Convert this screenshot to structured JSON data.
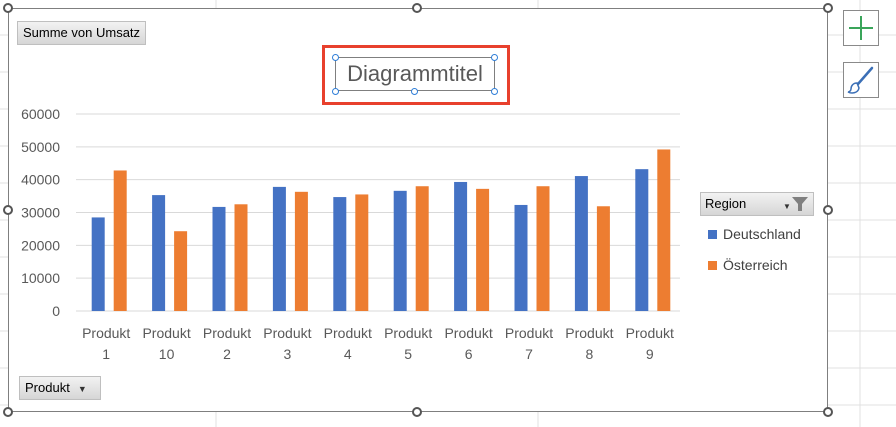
{
  "pivot": {
    "value_field_label": "Summe von Umsatz",
    "row_field_label": "Produkt",
    "legend_field_label": "Region"
  },
  "chart_title": "Diagrammtitel",
  "colors": {
    "Deutschland": "#4472c4",
    "Österreich": "#ed7d31",
    "selection": "#e8402d"
  },
  "icons": {
    "add": "plus-icon",
    "style": "brush-icon",
    "filter": "filter-icon"
  },
  "chart_data": {
    "type": "bar",
    "title": "Diagrammtitel",
    "categories": [
      [
        "Produkt",
        "1"
      ],
      [
        "Produkt",
        "10"
      ],
      [
        "Produkt",
        "2"
      ],
      [
        "Produkt",
        "3"
      ],
      [
        "Produkt",
        "4"
      ],
      [
        "Produkt",
        "5"
      ],
      [
        "Produkt",
        "6"
      ],
      [
        "Produkt",
        "7"
      ],
      [
        "Produkt",
        "8"
      ],
      [
        "Produkt",
        "9"
      ]
    ],
    "series": [
      {
        "name": "Deutschland",
        "values": [
          28500,
          35300,
          31700,
          37800,
          34700,
          36600,
          39300,
          32300,
          41100,
          43200
        ]
      },
      {
        "name": "Österreich",
        "values": [
          42800,
          24300,
          32500,
          36300,
          35500,
          38000,
          37200,
          38000,
          31900,
          49200
        ]
      }
    ],
    "ylim": [
      0,
      60000
    ],
    "yticks": [
      "0",
      "10000",
      "20000",
      "30000",
      "40000",
      "50000",
      "60000"
    ],
    "grid": true,
    "legend": "right"
  }
}
